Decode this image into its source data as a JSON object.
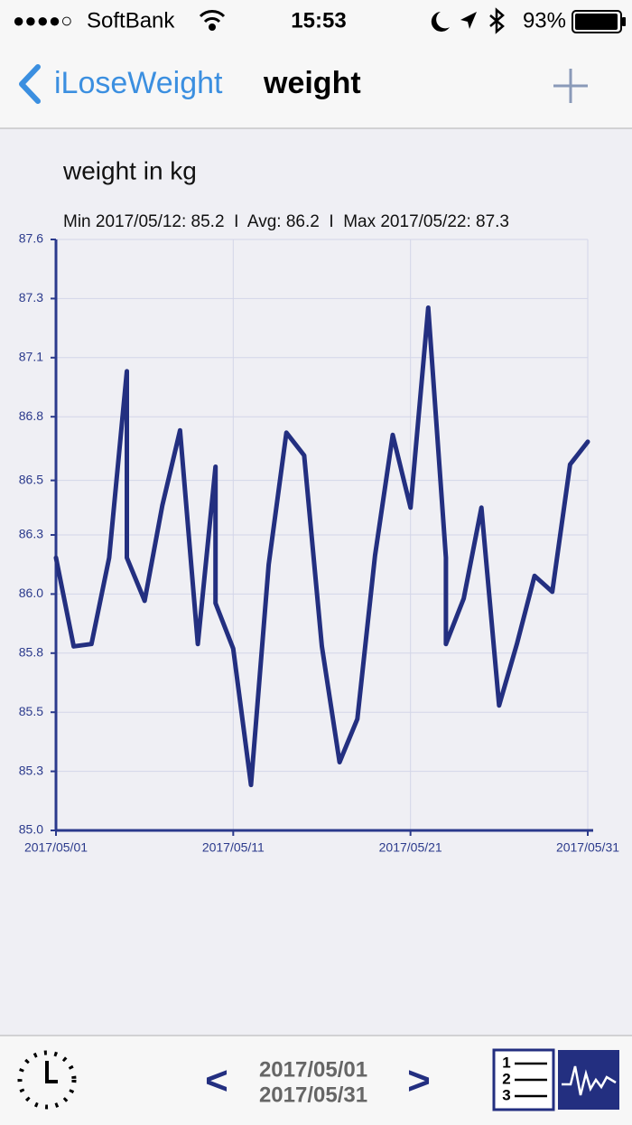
{
  "status_bar": {
    "signal": "●●●●○",
    "carrier": "SoftBank",
    "time": "15:53",
    "battery": "93%"
  },
  "nav": {
    "back": "iLoseWeight",
    "title": "weight"
  },
  "chart_data": {
    "type": "line",
    "title": "weight in kg",
    "subtitle": "Min 2017/05/12: 85.2  I  Avg: 86.2  I  Max 2017/05/22: 87.3",
    "color": "#232f80",
    "x": [
      "2017/05/01",
      "2017/05/02",
      "2017/05/03",
      "2017/05/04",
      "2017/05/05",
      "2017/05/05",
      "2017/05/06",
      "2017/05/07",
      "2017/05/08",
      "2017/05/09",
      "2017/05/10",
      "2017/05/10",
      "2017/05/11",
      "2017/05/12",
      "2017/05/13",
      "2017/05/14",
      "2017/05/15",
      "2017/05/16",
      "2017/05/17",
      "2017/05/18",
      "2017/05/19",
      "2017/05/20",
      "2017/05/21",
      "2017/05/22",
      "2017/05/23",
      "2017/05/23",
      "2017/05/24",
      "2017/05/25",
      "2017/05/26",
      "2017/05/27",
      "2017/05/28",
      "2017/05/29",
      "2017/05/30",
      "2017/05/31"
    ],
    "values": [
      86.2,
      85.81,
      85.82,
      86.2,
      87.02,
      86.2,
      86.01,
      86.43,
      86.76,
      85.82,
      86.6,
      86.0,
      85.8,
      85.2,
      86.17,
      86.75,
      86.65,
      85.81,
      85.3,
      85.49,
      86.21,
      86.74,
      86.42,
      87.3,
      86.2,
      85.82,
      86.02,
      86.42,
      85.55,
      85.82,
      86.12,
      86.05,
      86.61,
      86.71
    ],
    "xlim": [
      "2017/05/01",
      "2017/05/31"
    ],
    "xticks": [
      "2017/05/01",
      "2017/05/11",
      "2017/05/21",
      "2017/05/31"
    ],
    "ylim": [
      85.0,
      87.6
    ],
    "yticks": [
      {
        "value": 85,
        "label": "85.0"
      },
      {
        "value": 85.26,
        "label": "85.3"
      },
      {
        "value": 85.52,
        "label": "85.5"
      },
      {
        "value": 85.78,
        "label": "85.8"
      },
      {
        "value": 86.04,
        "label": "86.0"
      },
      86.3,
      {
        "value": 86.54,
        "label": "86.5"
      },
      {
        "value": 86.82,
        "label": "86.8"
      },
      {
        "value": 87.08,
        "label": "87.1"
      },
      {
        "value": 87.34,
        "label": "87.3"
      },
      87.6
    ],
    "grid": true
  },
  "toolbar": {
    "prev": "<",
    "start": "2017/05/01",
    "end": "2017/05/31",
    "next": ">",
    "list_icon": [
      "1",
      "2",
      "3"
    ]
  }
}
